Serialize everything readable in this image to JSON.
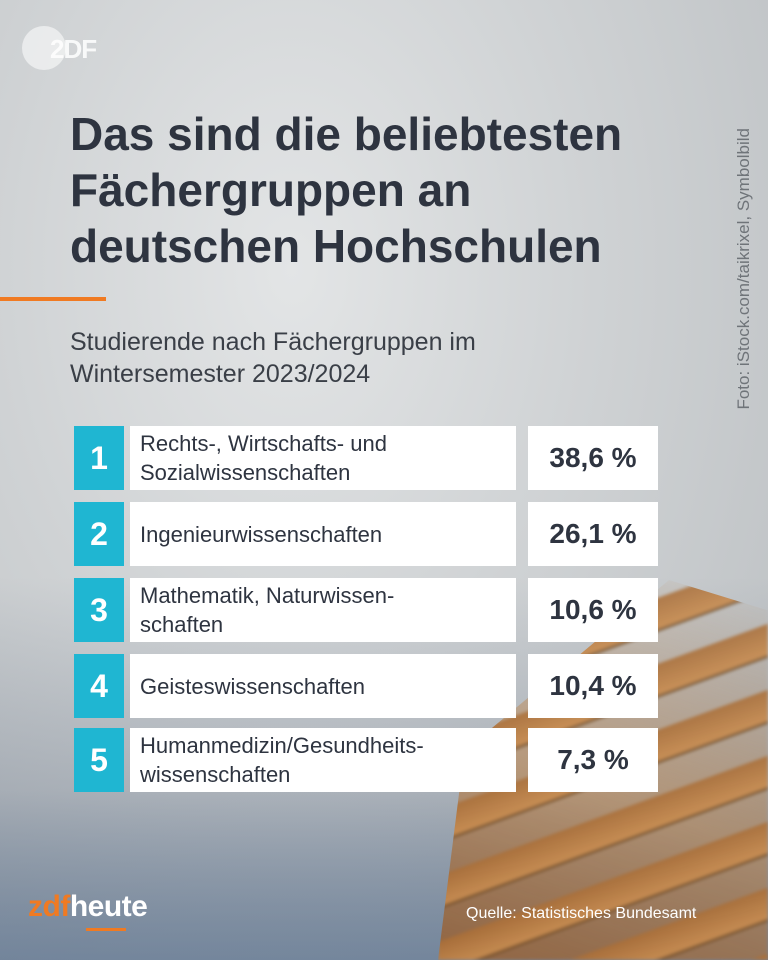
{
  "branding": {
    "top_logo": "2DF",
    "bottom_logo_prefix": "zdf",
    "bottom_logo_suffix": "heute"
  },
  "header": {
    "title_lines": [
      "Das sind die beliebtesten",
      "Fächergruppen an",
      "deutschen Hochschulen"
    ],
    "subtitle_lines": [
      "Studierende nach Fächergruppen im",
      "Wintersemester 2023/2024"
    ]
  },
  "credit": "Foto: iStock.com/taikrixel, Symbolbild",
  "footer": {
    "source": "Quelle: Statistisches Bundesamt"
  },
  "colors": {
    "rank_bg": "#1fb6d2",
    "accent": "#f07a22",
    "text": "#2e3440"
  },
  "chart_data": {
    "type": "table",
    "title": "Das sind die beliebtesten Fächergruppen an deutschen Hochschulen",
    "subtitle": "Studierende nach Fächergruppen im Wintersemester 2023/2024",
    "rows": [
      {
        "rank": "1",
        "label_lines": [
          "Rechts-, Wirtschafts- und",
          "Sozialwissenschaften"
        ],
        "value": 38.6,
        "value_text": "38,6 %"
      },
      {
        "rank": "2",
        "label_lines": [
          "Ingenieurwissenschaften"
        ],
        "value": 26.1,
        "value_text": "26,1 %"
      },
      {
        "rank": "3",
        "label_lines": [
          "Mathematik, Naturwissen-",
          "schaften"
        ],
        "value": 10.6,
        "value_text": "10,6 %"
      },
      {
        "rank": "4",
        "label_lines": [
          "Geisteswissenschaften"
        ],
        "value": 10.4,
        "value_text": "10,4 %"
      },
      {
        "rank": "5",
        "label_lines": [
          "Humanmedizin/Gesundheits-",
          "wissenschaften"
        ],
        "value": 7.3,
        "value_text": "7,3 %"
      }
    ]
  }
}
